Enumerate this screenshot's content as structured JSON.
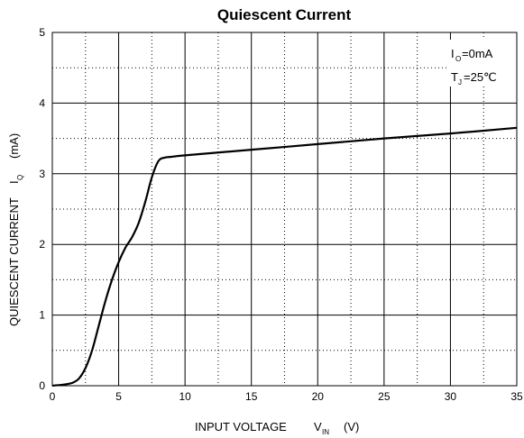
{
  "chart_data": {
    "type": "line",
    "title": "Quiescent Current",
    "xlabel": {
      "main": "INPUT VOLTAGE",
      "symbol": "V",
      "subscript": "IN",
      "unit": "(V)"
    },
    "ylabel": {
      "main": "QUIESCENT CURRENT",
      "symbol": "I",
      "subscript": "Q",
      "unit": "(mA)"
    },
    "xlim": [
      0,
      35
    ],
    "ylim": [
      0,
      5
    ],
    "x_major_ticks": [
      0,
      5,
      10,
      15,
      20,
      25,
      30,
      35
    ],
    "y_major_ticks": [
      0,
      1,
      2,
      3,
      4,
      5
    ],
    "grid": {
      "major": "solid",
      "minor": "dotted"
    },
    "annotations": [
      {
        "symbol": "I",
        "subscript": "O",
        "text": "=0mA"
      },
      {
        "symbol": "T",
        "subscript": "J",
        "text": "=25℃"
      }
    ],
    "series": [
      {
        "x": [
          0,
          1,
          1.5,
          2,
          2.5,
          3,
          3.5,
          4,
          4.5,
          5,
          5.5,
          6,
          6.5,
          7,
          7.5,
          8,
          8.5,
          9,
          10,
          15,
          20,
          25,
          30,
          35
        ],
        "y": [
          0,
          0.02,
          0.04,
          0.1,
          0.25,
          0.5,
          0.85,
          1.2,
          1.5,
          1.75,
          1.95,
          2.1,
          2.3,
          2.6,
          2.95,
          3.18,
          3.23,
          3.24,
          3.26,
          3.34,
          3.42,
          3.5,
          3.57,
          3.65
        ]
      }
    ]
  }
}
